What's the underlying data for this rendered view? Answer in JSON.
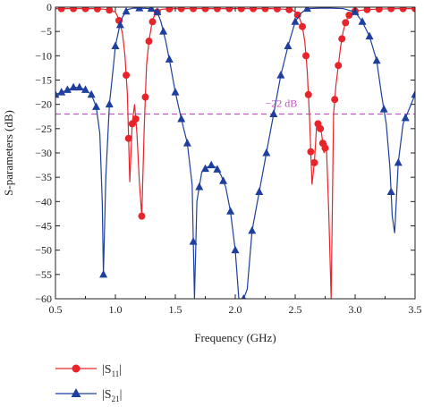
{
  "chart_data": {
    "type": "line",
    "xlabel": "Frequency (GHz)",
    "ylabel": "S-parameters (dB)",
    "xlim": [
      0.5,
      3.5
    ],
    "ylim": [
      -60,
      0
    ],
    "xticks": [
      "0.5",
      "1.0",
      "1.5",
      "2.0",
      "2.5",
      "3.0",
      "3.5"
    ],
    "xtick_values": [
      0.5,
      1.0,
      1.5,
      2.0,
      2.5,
      3.0,
      3.5
    ],
    "yticks": [
      "0",
      "−5",
      "−10",
      "−15",
      "−20",
      "−25",
      "−30",
      "−35",
      "−40",
      "−45",
      "−50",
      "−55",
      "−60"
    ],
    "ytick_values": [
      0,
      -5,
      -10,
      -15,
      -20,
      -25,
      -30,
      -35,
      -40,
      -45,
      -50,
      -55,
      -60
    ],
    "grid": false,
    "reference_line": {
      "value": -22,
      "label": "−22 dB",
      "color": "#c05abf"
    },
    "legend": {
      "placement": "bottom-left"
    },
    "series": [
      {
        "legend_label_main": "|S",
        "legend_label_sub": "11",
        "legend_label_end": "|",
        "color": "#e8242a",
        "marker": "circle",
        "x": [
          0.5,
          0.6,
          0.7,
          0.8,
          0.9,
          0.95,
          1.0,
          1.02,
          1.04,
          1.06,
          1.08,
          1.1,
          1.12,
          1.14,
          1.16,
          1.18,
          1.2,
          1.22,
          1.24,
          1.26,
          1.28,
          1.3,
          1.32,
          1.34,
          1.36,
          1.38,
          1.4,
          1.5,
          1.7,
          1.9,
          2.1,
          2.3,
          2.4,
          2.48,
          2.5,
          2.52,
          2.54,
          2.56,
          2.58,
          2.6,
          2.62,
          2.64,
          2.66,
          2.68,
          2.7,
          2.72,
          2.74,
          2.76,
          2.78,
          2.8,
          2.82,
          2.84,
          2.86,
          2.88,
          2.9,
          2.92,
          2.94,
          2.96,
          3.0,
          3.1,
          3.2,
          3.3,
          3.4,
          3.5
        ],
        "y": [
          -0.3,
          -0.3,
          -0.3,
          -0.3,
          -0.4,
          -0.6,
          -1.0,
          -2.0,
          -3.5,
          -5.5,
          -10.0,
          -18.0,
          -36.0,
          -24.0,
          -20.0,
          -26.0,
          -36.0,
          -43.0,
          -25.0,
          -12.0,
          -7.0,
          -4.0,
          -2.0,
          -1.2,
          -0.8,
          -0.5,
          -0.4,
          -0.3,
          -0.3,
          -0.3,
          -0.3,
          -0.3,
          -0.4,
          -0.6,
          -1.0,
          -1.6,
          -2.5,
          -4.0,
          -7.0,
          -13.0,
          -23.0,
          -36.5,
          -32.0,
          -24.0,
          -24.0,
          -26.0,
          -30.0,
          -28.0,
          -42.0,
          -60.0,
          -22.0,
          -16.0,
          -12.0,
          -8.0,
          -5.0,
          -3.2,
          -2.0,
          -1.3,
          -0.8,
          -0.5,
          -0.4,
          -0.3,
          -0.3,
          -0.3
        ],
        "markers_at": [
          0.55,
          0.65,
          0.75,
          0.85,
          0.95,
          1.03,
          1.09,
          1.11,
          1.14,
          1.17,
          1.22,
          1.25,
          1.28,
          1.31,
          1.35,
          1.45,
          1.55,
          1.65,
          1.75,
          1.85,
          1.95,
          2.05,
          2.15,
          2.25,
          2.35,
          2.45,
          2.52,
          2.56,
          2.59,
          2.61,
          2.63,
          2.66,
          2.69,
          2.71,
          2.73,
          2.75,
          2.83,
          2.86,
          2.89,
          2.92,
          2.95,
          3.0,
          3.1,
          3.2,
          3.3,
          3.4,
          3.5
        ]
      },
      {
        "legend_label_main": "|S",
        "legend_label_sub": "21",
        "legend_label_end": "|",
        "color": "#1f3f9e",
        "marker": "triangle",
        "x": [
          0.5,
          0.55,
          0.6,
          0.65,
          0.7,
          0.75,
          0.8,
          0.84,
          0.87,
          0.89,
          0.9,
          0.92,
          0.95,
          0.98,
          1.0,
          1.03,
          1.06,
          1.1,
          1.15,
          1.2,
          1.3,
          1.35,
          1.38,
          1.42,
          1.46,
          1.5,
          1.55,
          1.6,
          1.64,
          1.66,
          1.68,
          1.72,
          1.76,
          1.8,
          1.84,
          1.88,
          1.92,
          1.96,
          2.0,
          2.03,
          2.05,
          2.07,
          2.1,
          2.14,
          2.2,
          2.26,
          2.32,
          2.38,
          2.44,
          2.5,
          2.55,
          2.6,
          2.7,
          2.8,
          2.9,
          3.0,
          3.06,
          3.12,
          3.18,
          3.22,
          3.26,
          3.29,
          3.31,
          3.33,
          3.36,
          3.4,
          3.45,
          3.5
        ],
        "y": [
          -18.0,
          -17.5,
          -17.0,
          -16.5,
          -16.5,
          -17.0,
          -18.0,
          -20.5,
          -26.0,
          -40.0,
          -55.0,
          -35.0,
          -20.0,
          -13.0,
          -8.0,
          -4.5,
          -2.0,
          -0.5,
          -0.2,
          -0.2,
          -0.3,
          -1.0,
          -3.0,
          -7.0,
          -12.0,
          -17.5,
          -23.0,
          -28.0,
          -36.5,
          -60.0,
          -40.0,
          -34.0,
          -33.0,
          -32.5,
          -33.0,
          -34.5,
          -37.0,
          -42.0,
          -50.0,
          -60.0,
          -60.0,
          -60.0,
          -58.0,
          -46.0,
          -38.0,
          -30.0,
          -22.0,
          -14.0,
          -8.0,
          -3.0,
          -1.2,
          -0.3,
          -0.2,
          -0.2,
          -0.3,
          -1.0,
          -3.0,
          -6.0,
          -11.0,
          -18.0,
          -24.0,
          -33.0,
          -43.0,
          -46.5,
          -32.0,
          -24.0,
          -21.0,
          -18.0
        ],
        "markers_at": [
          0.5,
          0.55,
          0.6,
          0.65,
          0.7,
          0.75,
          0.8,
          0.84,
          0.9,
          0.95,
          1.0,
          1.04,
          1.09,
          1.2,
          1.3,
          1.35,
          1.4,
          1.45,
          1.5,
          1.55,
          1.6,
          1.65,
          1.7,
          1.75,
          1.8,
          1.85,
          1.9,
          1.96,
          2.0,
          2.07,
          2.14,
          2.2,
          2.26,
          2.32,
          2.38,
          2.44,
          2.5,
          2.6,
          3.0,
          3.06,
          3.12,
          3.18,
          3.24,
          3.3,
          3.36,
          3.42,
          3.5
        ]
      }
    ]
  }
}
